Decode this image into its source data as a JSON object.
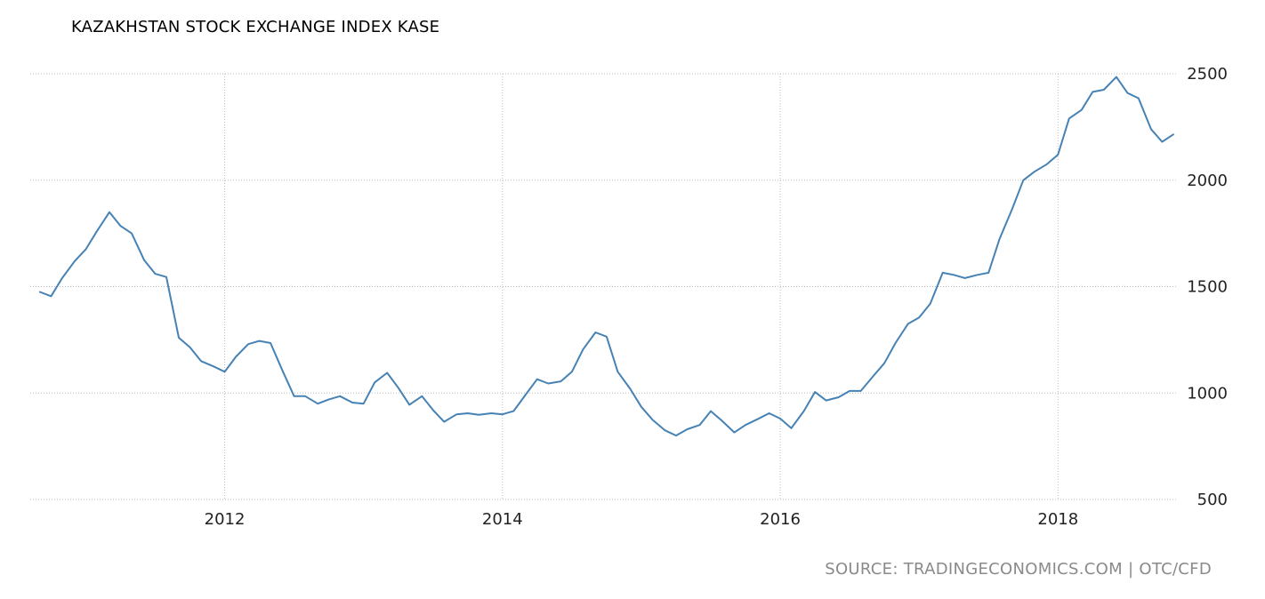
{
  "chart_data": {
    "type": "line",
    "title": "KAZAKHSTAN STOCK EXCHANGE INDEX KASE",
    "source": "SOURCE: TRADINGECONOMICS.COM | OTC/CFD",
    "xlabel": "",
    "ylabel": "",
    "x_ticks": [
      "2012",
      "2014",
      "2016",
      "2018"
    ],
    "x_tick_values": [
      2012,
      2014,
      2016,
      2018
    ],
    "y_ticks": [
      2500,
      2000,
      1500,
      1000,
      500
    ],
    "xlim": [
      2010.6,
      2018.85
    ],
    "ylim": [
      500,
      2500
    ],
    "grid": true,
    "y_axis_side": "right",
    "color": "#4682b4",
    "series": [
      {
        "x": [
          2010.67,
          2010.75,
          2010.83,
          2010.92,
          2011.0,
          2011.08,
          2011.17,
          2011.25,
          2011.33,
          2011.42,
          2011.5,
          2011.58,
          2011.67,
          2011.75,
          2011.83,
          2011.92,
          2012.0,
          2012.08,
          2012.17,
          2012.25,
          2012.33,
          2012.42,
          2012.5,
          2012.58,
          2012.67,
          2012.75,
          2012.83,
          2012.92,
          2013.0,
          2013.08,
          2013.17,
          2013.25,
          2013.33,
          2013.42,
          2013.5,
          2013.58,
          2013.67,
          2013.75,
          2013.83,
          2013.92,
          2014.0,
          2014.08,
          2014.17,
          2014.25,
          2014.33,
          2014.42,
          2014.5,
          2014.58,
          2014.67,
          2014.75,
          2014.83,
          2014.92,
          2015.0,
          2015.08,
          2015.17,
          2015.25,
          2015.33,
          2015.42,
          2015.5,
          2015.58,
          2015.67,
          2015.75,
          2015.83,
          2015.92,
          2016.0,
          2016.08,
          2016.17,
          2016.25,
          2016.33,
          2016.42,
          2016.5,
          2016.58,
          2016.67,
          2016.75,
          2016.83,
          2016.92,
          2017.0,
          2017.08,
          2017.17,
          2017.25,
          2017.33,
          2017.42,
          2017.5,
          2017.58,
          2017.67,
          2017.75,
          2017.83,
          2017.92,
          2018.0,
          2018.08,
          2018.17,
          2018.25,
          2018.33,
          2018.42,
          2018.5,
          2018.58,
          2018.67,
          2018.75,
          2018.83
        ],
        "values": [
          1475,
          1455,
          1540,
          1620,
          1675,
          1760,
          1850,
          1785,
          1750,
          1625,
          1560,
          1545,
          1260,
          1215,
          1150,
          1125,
          1100,
          1170,
          1230,
          1245,
          1235,
          1100,
          985,
          985,
          950,
          970,
          985,
          955,
          950,
          1050,
          1095,
          1025,
          945,
          985,
          920,
          865,
          900,
          905,
          898,
          905,
          900,
          915,
          995,
          1065,
          1045,
          1055,
          1100,
          1205,
          1285,
          1265,
          1100,
          1020,
          935,
          875,
          825,
          800,
          830,
          850,
          915,
          870,
          815,
          850,
          875,
          905,
          880,
          835,
          915,
          1005,
          965,
          980,
          1010,
          1010,
          1080,
          1140,
          1235,
          1325,
          1355,
          1420,
          1565,
          1555,
          1540,
          1555,
          1565,
          1725,
          1865,
          2000,
          2040,
          2075,
          2120,
          2290,
          2330,
          2415,
          2425,
          2485,
          2410,
          2385,
          2240,
          2180,
          2215
        ]
      }
    ]
  }
}
